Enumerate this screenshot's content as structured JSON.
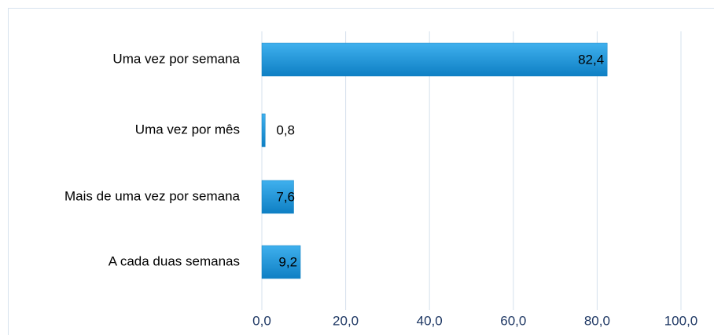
{
  "chart_data": {
    "type": "bar",
    "orientation": "horizontal",
    "categories": [
      "Uma vez por semana",
      "Uma vez por mês",
      "Mais de uma vez por semana",
      "A cada duas semanas"
    ],
    "values": [
      82.4,
      0.8,
      7.6,
      9.2
    ],
    "value_labels": [
      "82,4",
      "0,8",
      "7,6",
      "9,2"
    ],
    "color": "#1b9ae0",
    "xlim": [
      0,
      100
    ],
    "xticks": [
      {
        "value": 0,
        "label": "0,0"
      },
      {
        "value": 20,
        "label": "20,0"
      },
      {
        "value": 40,
        "label": "40,0"
      },
      {
        "value": 60,
        "label": "60,0"
      },
      {
        "value": 80,
        "label": "80,0"
      },
      {
        "value": 100,
        "label": "100,0"
      }
    ],
    "grid": true
  }
}
